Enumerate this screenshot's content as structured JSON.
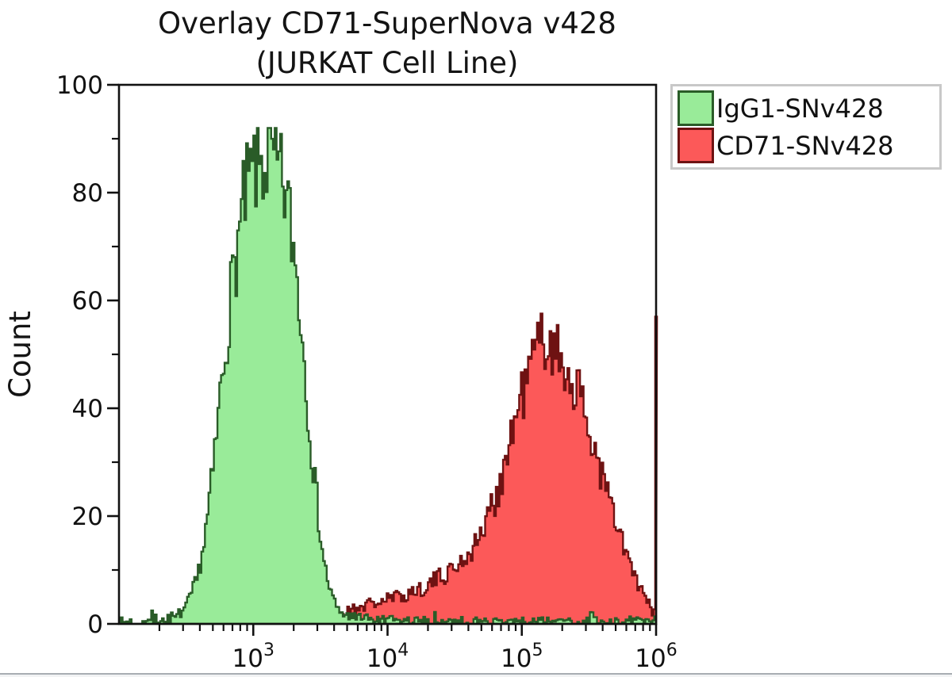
{
  "figure": {
    "title_line1": "Overlay CD71-SuperNova v428",
    "title_line2": "(JURKAT Cell Line)",
    "background_color": "#ffffff",
    "bottom_divider_color": "#a8adb2"
  },
  "chart_data": {
    "type": "area",
    "subtype": "flow-cytometry-histogram-overlay",
    "title": "Overlay CD71-SuperNova v428 (JURKAT Cell Line)",
    "xlabel": "",
    "ylabel": "Count",
    "x_scale": "log10",
    "x_range": [
      100,
      1000000
    ],
    "x_major_ticks": [
      {
        "value": 1000,
        "base": "10",
        "exponent": "3",
        "log": 3
      },
      {
        "value": 10000,
        "base": "10",
        "exponent": "4",
        "log": 4
      },
      {
        "value": 100000,
        "base": "10",
        "exponent": "5",
        "log": 5
      },
      {
        "value": 1000000,
        "base": "10",
        "exponent": "6",
        "log": 6
      }
    ],
    "x_minor_tick_decades": [
      2,
      3,
      4,
      5
    ],
    "y_range": [
      0,
      100
    ],
    "y_major_ticks": [
      0,
      20,
      40,
      60,
      80,
      100
    ],
    "y_minor_ticks": [
      10,
      30,
      50,
      70,
      90
    ],
    "grid": false,
    "legend_position": "top-right-outside",
    "bins_per_decade": 75,
    "noise": {
      "base": 0.9,
      "scale": 0.105
    },
    "series": [
      {
        "name": "IgG1-SNv428",
        "fill_color": "#99EB99",
        "stroke_color": "#2A5C28",
        "peak": {
          "x": 1300,
          "count": 92
        },
        "max_count": 92,
        "start_log": 2.0,
        "noise_seed": 7,
        "envelope_log_count": [
          [
            2.0,
            0.3
          ],
          [
            2.3,
            0.5
          ],
          [
            2.42,
            1.2
          ],
          [
            2.5,
            3
          ],
          [
            2.58,
            8
          ],
          [
            2.64,
            16
          ],
          [
            2.7,
            28
          ],
          [
            2.76,
            44
          ],
          [
            2.82,
            58
          ],
          [
            2.88,
            70
          ],
          [
            2.94,
            79
          ],
          [
            3.0,
            84
          ],
          [
            3.06,
            85.5
          ],
          [
            3.12,
            86
          ],
          [
            3.18,
            84
          ],
          [
            3.24,
            80
          ],
          [
            3.29,
            72
          ],
          [
            3.34,
            61
          ],
          [
            3.39,
            46
          ],
          [
            3.44,
            31
          ],
          [
            3.49,
            19
          ],
          [
            3.53,
            11
          ],
          [
            3.58,
            5.5
          ],
          [
            3.63,
            2.5
          ],
          [
            3.7,
            1.4
          ],
          [
            3.8,
            0.9
          ],
          [
            3.95,
            0.6
          ],
          [
            4.3,
            0.4
          ],
          [
            5.0,
            0.35
          ],
          [
            6.0,
            0.35
          ]
        ]
      },
      {
        "name": "CD71-SNv428",
        "fill_color": "#FC5959",
        "stroke_color": "#6E1212",
        "peak": {
          "x": 140000,
          "count": 60
        },
        "max_count": 60,
        "start_log": 3.58,
        "noise_seed": 21,
        "edge_spike_count": 57,
        "envelope_log_count": [
          [
            3.58,
            0.4
          ],
          [
            3.66,
            1.5
          ],
          [
            3.74,
            2.8
          ],
          [
            3.85,
            3.6
          ],
          [
            3.95,
            4.2
          ],
          [
            4.05,
            4.8
          ],
          [
            4.15,
            5.6
          ],
          [
            4.25,
            6.6
          ],
          [
            4.35,
            8
          ],
          [
            4.45,
            9.6
          ],
          [
            4.55,
            11.5
          ],
          [
            4.65,
            14.5
          ],
          [
            4.72,
            18
          ],
          [
            4.8,
            23
          ],
          [
            4.88,
            30
          ],
          [
            4.95,
            38
          ],
          [
            5.02,
            44
          ],
          [
            5.08,
            49
          ],
          [
            5.14,
            53
          ],
          [
            5.2,
            53
          ],
          [
            5.26,
            50
          ],
          [
            5.32,
            48
          ],
          [
            5.4,
            44
          ],
          [
            5.48,
            38
          ],
          [
            5.56,
            31
          ],
          [
            5.64,
            24
          ],
          [
            5.72,
            17
          ],
          [
            5.8,
            11.5
          ],
          [
            5.87,
            7
          ],
          [
            5.93,
            4
          ],
          [
            5.98,
            2.2
          ],
          [
            6.0,
            2
          ]
        ]
      }
    ]
  },
  "legend": {
    "border_color": "#c8c8c8",
    "items": [
      {
        "label": "IgG1-SNv428",
        "fill_color": "#99EB99",
        "stroke_color": "#2A5C28"
      },
      {
        "label": "CD71-SNv428",
        "fill_color": "#FC5959",
        "stroke_color": "#6E1212"
      }
    ]
  }
}
